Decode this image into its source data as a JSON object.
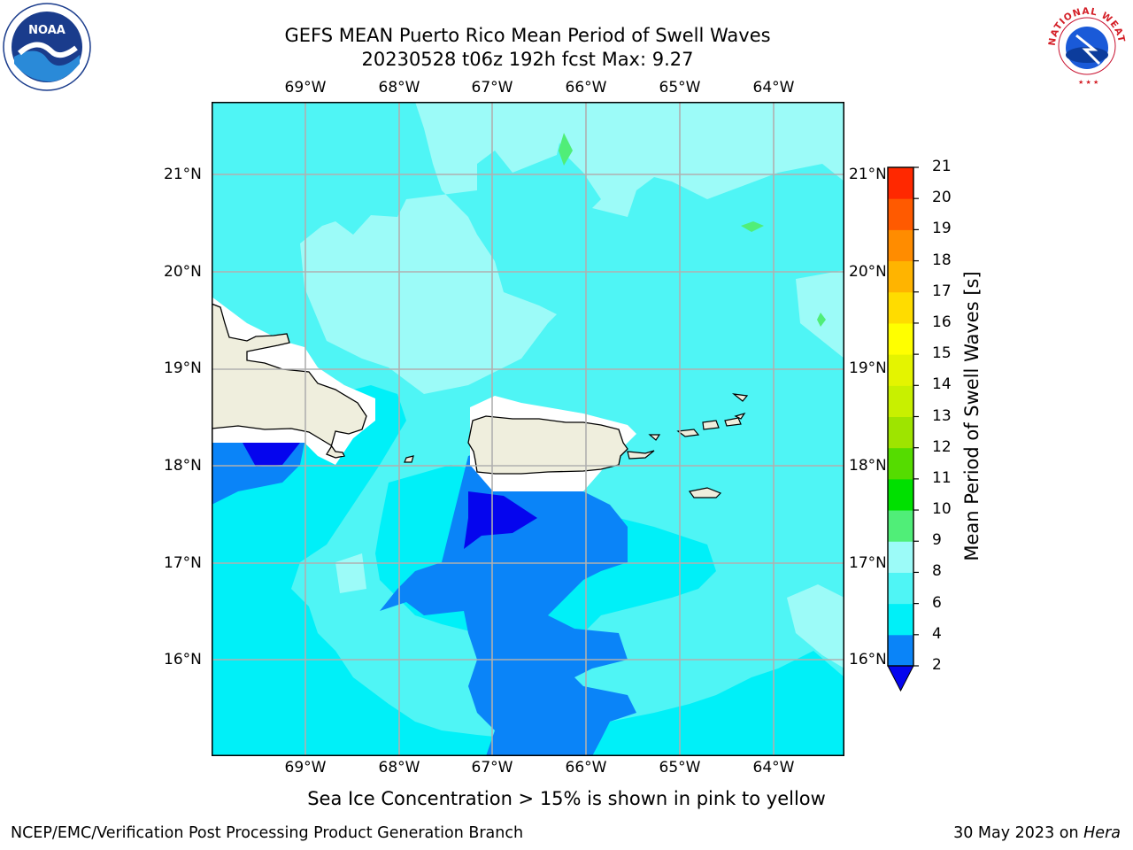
{
  "title": {
    "line1": "GEFS MEAN Puerto Rico Mean Period of Swell Waves",
    "line2": "20230528 t06z 192h fcst   Max: 9.27"
  },
  "map": {
    "lon_labels": [
      "69°W",
      "68°W",
      "67°W",
      "66°W",
      "65°W",
      "64°W"
    ],
    "lat_labels": [
      "21°N",
      "20°N",
      "19°N",
      "18°N",
      "17°N",
      "16°N"
    ],
    "colors": {
      "level_2_4": "#0a84f8",
      "level_4_6": "#00f0f8",
      "level_6_8": "#4ff5f5",
      "level_8_9": "#9cfbf8",
      "level_9_10": "#50ee78",
      "below_2": "#0505ee",
      "land": "#efeedd"
    }
  },
  "colorbar": {
    "title": "Mean Period of Swell Waves [s]",
    "ticks": [
      "2",
      "4",
      "6",
      "8",
      "9",
      "10",
      "11",
      "12",
      "13",
      "14",
      "15",
      "16",
      "17",
      "18",
      "19",
      "20",
      "21"
    ],
    "colors": [
      "#0a84f8",
      "#00f0f8",
      "#4ff5f5",
      "#9cfbf8",
      "#50ee78",
      "#00e000",
      "#55dc00",
      "#9ee400",
      "#c8f000",
      "#e4f400",
      "#ffff00",
      "#ffdc00",
      "#ffb400",
      "#ff8c00",
      "#ff5a00",
      "#ff2800",
      "#ff0000"
    ],
    "extend_color": "#0505ee"
  },
  "note": "Sea Ice Concentration > 15% is shown in pink to yellow",
  "footer": {
    "left": "NCEP/EMC/Verification Post Processing Product Generation Branch",
    "date": "30 May 2023 on ",
    "machine": "Hera"
  },
  "logos": {
    "noaa_text": "NOAA",
    "nws_text": "NATIONAL WEATHER SERVICE"
  }
}
